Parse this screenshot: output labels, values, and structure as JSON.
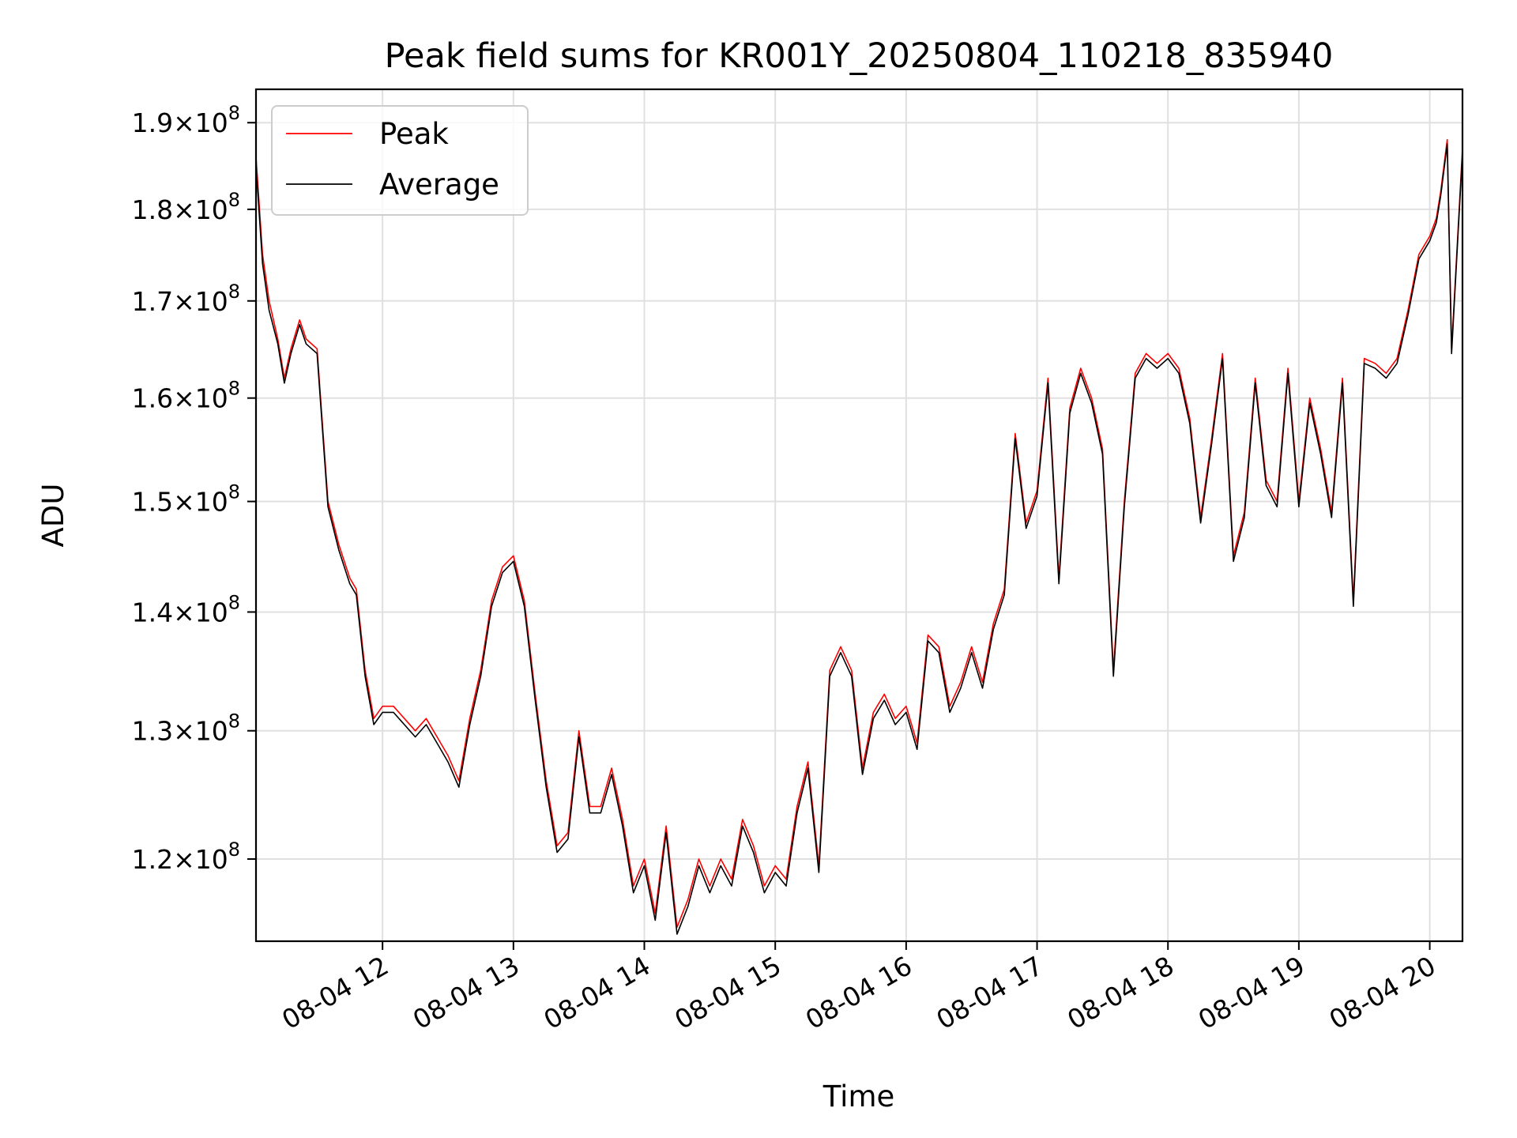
{
  "chart_data": {
    "type": "line",
    "title": "Peak field sums for KR001Y_20250804_110218_835940",
    "xlabel": "Time",
    "ylabel": "ADU",
    "yscale": "log",
    "grid": true,
    "legend_position": "top-left",
    "xlim": [
      "2025-08-04 11:02",
      "2025-08-04 20:15"
    ],
    "ylim": [
      114000000,
      194000000
    ],
    "x_ticks": [
      "08-04 12",
      "08-04 13",
      "08-04 14",
      "08-04 15",
      "08-04 16",
      "08-04 17",
      "08-04 18",
      "08-04 19",
      "08-04 20"
    ],
    "y_ticks": [
      {
        "value": 120000000,
        "mantissa": "1.2",
        "exponent": "8"
      },
      {
        "value": 130000000,
        "mantissa": "1.3",
        "exponent": "8"
      },
      {
        "value": 140000000,
        "mantissa": "1.4",
        "exponent": "8"
      },
      {
        "value": 150000000,
        "mantissa": "1.5",
        "exponent": "8"
      },
      {
        "value": 160000000,
        "mantissa": "1.6",
        "exponent": "8"
      },
      {
        "value": 170000000,
        "mantissa": "1.7",
        "exponent": "8"
      },
      {
        "value": 180000000,
        "mantissa": "1.8",
        "exponent": "8"
      },
      {
        "value": 190000000,
        "mantissa": "1.9",
        "exponent": "8"
      }
    ],
    "x": [
      "11:02",
      "11:05",
      "11:08",
      "11:12",
      "11:15",
      "11:18",
      "11:22",
      "11:25",
      "11:30",
      "11:35",
      "11:40",
      "11:45",
      "11:48",
      "11:52",
      "11:56",
      "12:00",
      "12:05",
      "12:10",
      "12:15",
      "12:20",
      "12:25",
      "12:30",
      "12:35",
      "12:40",
      "12:45",
      "12:50",
      "12:55",
      "13:00",
      "13:05",
      "13:10",
      "13:15",
      "13:20",
      "13:25",
      "13:30",
      "13:35",
      "13:40",
      "13:45",
      "13:50",
      "13:55",
      "14:00",
      "14:05",
      "14:10",
      "14:15",
      "14:20",
      "14:25",
      "14:30",
      "14:35",
      "14:40",
      "14:45",
      "14:50",
      "14:55",
      "15:00",
      "15:05",
      "15:10",
      "15:15",
      "15:20",
      "15:25",
      "15:30",
      "15:35",
      "15:40",
      "15:45",
      "15:50",
      "15:55",
      "16:00",
      "16:05",
      "16:10",
      "16:15",
      "16:20",
      "16:25",
      "16:30",
      "16:35",
      "16:40",
      "16:45",
      "16:50",
      "16:55",
      "17:00",
      "17:05",
      "17:10",
      "17:15",
      "17:20",
      "17:25",
      "17:30",
      "17:35",
      "17:40",
      "17:45",
      "17:50",
      "17:55",
      "18:00",
      "18:05",
      "18:10",
      "18:15",
      "18:20",
      "18:25",
      "18:30",
      "18:35",
      "18:40",
      "18:45",
      "18:50",
      "18:55",
      "19:00",
      "19:05",
      "19:10",
      "19:15",
      "19:20",
      "19:25",
      "19:30",
      "19:35",
      "19:40",
      "19:45",
      "19:50",
      "19:55",
      "20:00",
      "20:03",
      "20:05",
      "20:08",
      "20:10",
      "20:15"
    ],
    "series": [
      {
        "name": "Peak",
        "color": "#ff0000",
        "values": [
          186000000,
          175000000,
          170000000,
          166000000,
          162000000,
          165000000,
          168000000,
          166000000,
          165000000,
          150000000,
          146000000,
          143000000,
          142000000,
          135000000,
          131000000,
          132000000,
          132000000,
          131000000,
          130000000,
          131000000,
          129500000,
          128000000,
          126000000,
          131000000,
          135000000,
          141000000,
          144000000,
          145000000,
          141000000,
          133000000,
          126000000,
          121000000,
          122000000,
          130000000,
          124000000,
          124000000,
          127000000,
          123000000,
          118000000,
          120000000,
          116000000,
          122500000,
          115000000,
          117000000,
          120000000,
          118000000,
          120000000,
          118500000,
          123000000,
          121000000,
          118000000,
          119500000,
          118500000,
          124000000,
          127500000,
          119500000,
          135000000,
          137000000,
          135000000,
          127000000,
          131500000,
          133000000,
          131000000,
          132000000,
          129000000,
          138000000,
          137000000,
          132000000,
          134000000,
          137000000,
          134000000,
          139000000,
          142000000,
          156500000,
          148000000,
          151000000,
          162000000,
          143000000,
          159000000,
          163000000,
          160000000,
          155000000,
          135000000,
          150000000,
          162500000,
          164500000,
          163500000,
          164500000,
          163000000,
          158000000,
          148500000,
          156000000,
          164500000,
          145000000,
          149000000,
          162000000,
          152000000,
          150000000,
          163000000,
          150000000,
          160000000,
          155000000,
          149000000,
          162000000,
          141000000,
          164000000,
          163500000,
          162500000,
          164000000,
          169000000,
          175000000,
          177000000,
          179000000,
          182000000,
          188000000,
          165000000,
          187000000
        ]
      },
      {
        "name": "Average",
        "color": "#000000",
        "values": [
          185000000,
          174000000,
          169000000,
          165500000,
          161500000,
          164500000,
          167500000,
          165500000,
          164500000,
          149500000,
          145500000,
          142500000,
          141500000,
          134500000,
          130500000,
          131500000,
          131500000,
          130500000,
          129500000,
          130500000,
          129000000,
          127500000,
          125500000,
          130500000,
          134500000,
          140500000,
          143500000,
          144500000,
          140500000,
          132500000,
          125500000,
          120500000,
          121500000,
          129500000,
          123500000,
          123500000,
          126500000,
          122500000,
          117500000,
          119500000,
          115500000,
          122000000,
          114500000,
          116500000,
          119500000,
          117500000,
          119500000,
          118000000,
          122500000,
          120500000,
          117500000,
          119000000,
          118000000,
          123500000,
          127000000,
          119000000,
          134500000,
          136500000,
          134500000,
          126500000,
          131000000,
          132500000,
          130500000,
          131500000,
          128500000,
          137500000,
          136500000,
          131500000,
          133500000,
          136500000,
          133500000,
          138500000,
          141500000,
          156000000,
          147500000,
          150500000,
          161500000,
          142500000,
          158500000,
          162500000,
          159500000,
          154500000,
          134500000,
          149500000,
          162000000,
          164000000,
          163000000,
          164000000,
          162500000,
          157500000,
          148000000,
          155500000,
          164000000,
          144500000,
          148500000,
          161500000,
          151500000,
          149500000,
          162500000,
          149500000,
          159500000,
          154500000,
          148500000,
          161500000,
          140500000,
          163500000,
          163000000,
          162000000,
          163500000,
          168500000,
          174500000,
          176500000,
          178500000,
          181500000,
          187500000,
          164500000,
          186500000
        ]
      }
    ]
  }
}
